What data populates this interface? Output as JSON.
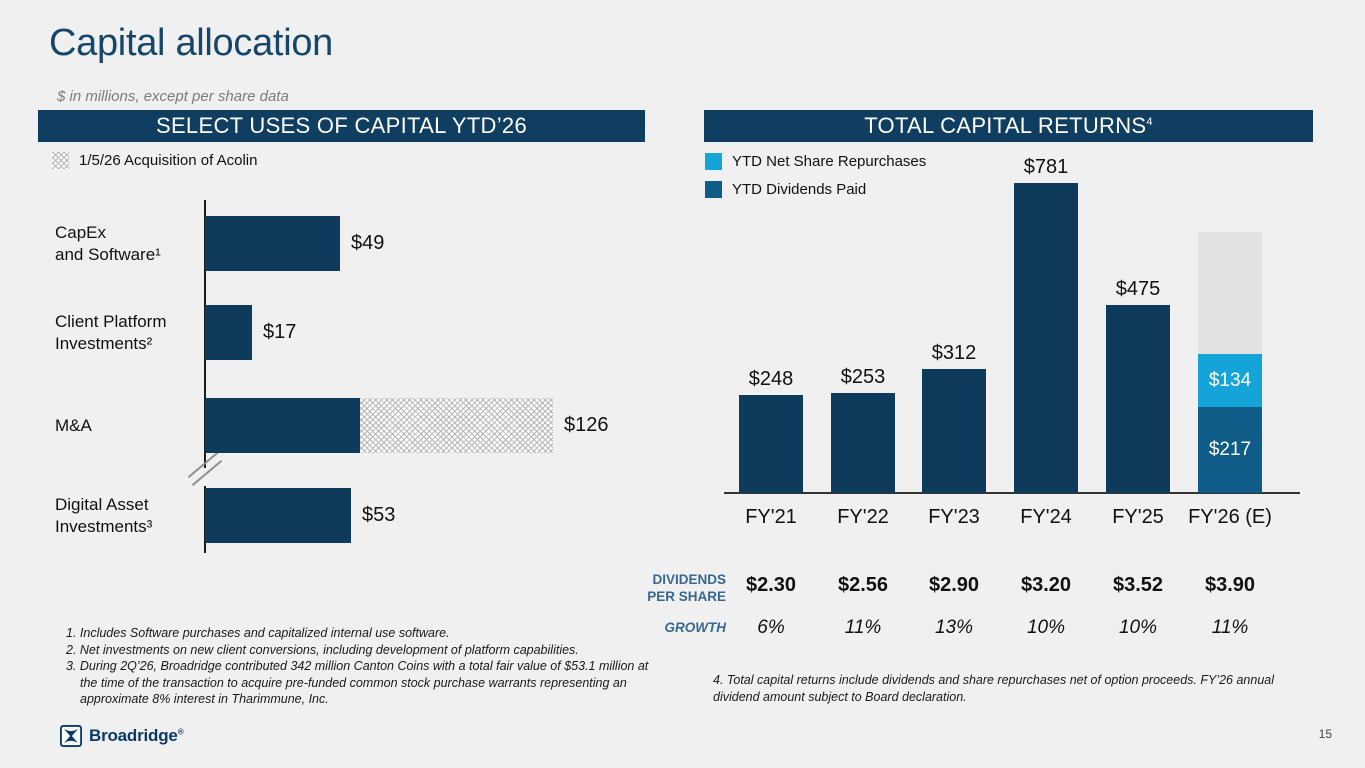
{
  "page": {
    "title": "Capital allocation",
    "subtitle": "$ in millions, except per share data",
    "page_number": "15"
  },
  "footer": {
    "brand": "Broadridge",
    "reg_mark": "®",
    "logo_icon": "broadridge-logo"
  },
  "left_panel": {
    "header": "SELECT USES OF CAPITAL YTD’26",
    "legend_label": "1/5/26 Acquisition of Acolin",
    "legend_swatch": "hatched-pattern",
    "footnotes": [
      "1. Includes Software purchases and capitalized internal use software.",
      "2. Net investments on new client conversions, including development of platform capabilities.",
      "3. During 2Q’26, Broadridge contributed 342 million Canton Coins with a total fair value of $53.1 million at the time of the transaction to acquire pre-funded common stock purchase warrants representing an approximate 8% interest in Tharimmune, Inc."
    ]
  },
  "right_panel": {
    "header": "TOTAL CAPITAL RETURNS",
    "header_superscript": "4",
    "legend": [
      {
        "label": "YTD Net Share Repurchases",
        "color": "#15a4d8"
      },
      {
        "label": "YTD Dividends Paid",
        "color": "#0f5c88"
      }
    ],
    "footnote": "4. Total capital returns include dividends and share repurchases net of option proceeds. FY’26 annual dividend amount subject to Board declaration."
  },
  "colors": {
    "navy_bar": "#0e3a5b",
    "medium_blue": "#0f5c88",
    "light_blue": "#15a4d8",
    "gray_estimate": "#e2e2e2",
    "header_navy": "#103e60",
    "title_navy": "#17466b",
    "table_label_blue": "#38678f"
  },
  "chart_data": [
    {
      "id": "select_uses_of_capital",
      "type": "bar",
      "orientation": "horizontal",
      "title": "SELECT USES OF CAPITAL YTD’26",
      "unit": "$ in millions",
      "categories": [
        "CapEx and Software¹",
        "Client Platform Investments²",
        "M&A",
        "Digital Asset Investments³"
      ],
      "display_labels": [
        "CapEx\nand Software¹",
        "Client Platform\nInvestments²",
        "M&A",
        "Digital Asset\nInvestments³"
      ],
      "values": [
        49,
        17,
        126,
        53
      ],
      "value_labels": [
        "$49",
        "$17",
        "$126",
        "$53"
      ],
      "xlim": [
        0,
        135
      ],
      "grid": false,
      "acolin_overlay": {
        "bar_index": 2,
        "note": "hatched portion of M&A bar = 1/5/26 Acquisition of Acolin",
        "solid_portion": 56,
        "hatched_portion": 70
      },
      "axis_break": "between M&A and Digital Asset Investments"
    },
    {
      "id": "total_capital_returns",
      "type": "stacked-bar",
      "orientation": "vertical",
      "title": "TOTAL CAPITAL RETURNS⁴",
      "unit": "$ in millions",
      "legend_position": "top-left",
      "legend": [
        "YTD Net Share Repurchases",
        "YTD Dividends Paid"
      ],
      "categories": [
        "FY'21",
        "FY'22",
        "FY'23",
        "FY'24",
        "FY'25",
        "FY'26 (E)"
      ],
      "ylim": [
        0,
        800
      ],
      "grid": false,
      "bars": [
        {
          "label": "$248",
          "segments": [
            {
              "name": "total-capital-returns",
              "value": 248,
              "color": "#0e3a5b"
            }
          ]
        },
        {
          "label": "$253",
          "segments": [
            {
              "name": "total-capital-returns",
              "value": 253,
              "color": "#0e3a5b"
            }
          ]
        },
        {
          "label": "$312",
          "segments": [
            {
              "name": "total-capital-returns",
              "value": 312,
              "color": "#0e3a5b"
            }
          ]
        },
        {
          "label": "$781",
          "segments": [
            {
              "name": "total-capital-returns",
              "value": 781,
              "color": "#0e3a5b"
            }
          ]
        },
        {
          "label": "$475",
          "segments": [
            {
              "name": "total-capital-returns",
              "value": 475,
              "color": "#0e3a5b"
            }
          ]
        },
        {
          "label": "",
          "segments": [
            {
              "name": "ytd-dividends-paid",
              "value": 217,
              "color": "#0f5c88",
              "inside_label": "$217"
            },
            {
              "name": "ytd-net-share-repurchases",
              "value": 134,
              "color": "#15a4d8",
              "inside_label": "$134"
            },
            {
              "name": "estimated-remainder-unlabeled",
              "value": 307,
              "color": "#e2e2e2"
            }
          ]
        }
      ],
      "table": {
        "rows": [
          {
            "label": "DIVIDENDS\nPER SHARE",
            "values": [
              "$2.30",
              "$2.56",
              "$2.90",
              "$3.20",
              "$3.52",
              "$3.90"
            ]
          },
          {
            "label": "GROWTH",
            "values": [
              "6%",
              "11%",
              "13%",
              "10%",
              "10%",
              "11%"
            ]
          }
        ]
      }
    }
  ]
}
